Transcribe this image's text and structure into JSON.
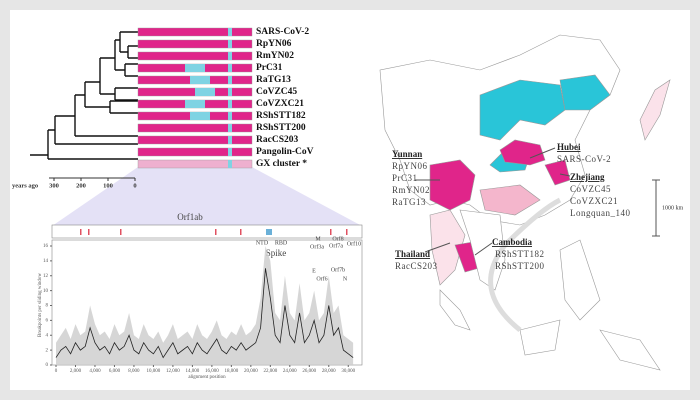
{
  "tree": {
    "taxa": [
      "SARS-CoV-2",
      "RpYN06",
      "RmYN02",
      "PrC31",
      "RaTG13",
      "CoVZC45",
      "CoVZXC21",
      "RShSTT182",
      "RShSTT200",
      "RacCS203",
      "Pangolin-CoV",
      "GX cluster *"
    ],
    "axis_label": "years ago",
    "ticks": [
      300,
      200,
      100,
      0
    ]
  },
  "genome": {
    "regions": [
      "Orf1ab",
      "NTD",
      "RBD",
      "M",
      "Orf8",
      "Orf10",
      "Orf3a",
      "Orf7a",
      "E",
      "Orf7b",
      "Orf6",
      "N",
      "Spike"
    ]
  },
  "chart_data": {
    "type": "line",
    "xlabel": "alignment position",
    "ylabel": "Breakpoints per sliding window",
    "color": "#222",
    "x": [
      0,
      500,
      1000,
      1500,
      2000,
      2500,
      3000,
      3500,
      4000,
      4500,
      5000,
      5500,
      6000,
      6500,
      7000,
      7500,
      8000,
      8500,
      9000,
      9500,
      10000,
      10500,
      11000,
      11500,
      12000,
      12500,
      13000,
      13500,
      14000,
      14500,
      15000,
      15500,
      16000,
      16500,
      17000,
      17500,
      18000,
      18500,
      19000,
      19500,
      20000,
      20500,
      21000,
      21500,
      22000,
      22500,
      23000,
      23500,
      24000,
      24500,
      25000,
      25500,
      26000,
      26500,
      27000,
      27500,
      28000,
      28500,
      29000,
      29500,
      30000,
      30500
    ],
    "values": [
      1,
      2,
      2.5,
      1.5,
      3,
      2,
      2.5,
      5,
      3,
      2,
      2.5,
      1.5,
      3,
      2,
      2.5,
      4,
      2,
      1.5,
      3,
      2,
      1.5,
      2.5,
      1,
      2,
      3,
      1.5,
      2,
      2.5,
      1.5,
      3,
      2,
      1.5,
      2.5,
      3.5,
      2,
      1.5,
      2.5,
      2,
      3,
      2,
      2.5,
      3,
      5,
      13,
      9,
      4,
      3,
      8,
      4,
      3,
      7,
      3,
      4,
      6,
      3,
      4,
      8,
      4,
      5,
      2,
      1.5,
      1
    ],
    "upper": [
      3,
      4,
      5,
      3.5,
      5.5,
      4,
      4.5,
      8,
      5.5,
      4,
      4.5,
      3.5,
      5.5,
      4,
      4.5,
      7,
      4,
      3.5,
      5.5,
      4,
      3.5,
      4.5,
      3,
      4,
      5.5,
      3.5,
      4,
      4.5,
      3.5,
      5.5,
      4,
      3.5,
      4.5,
      6,
      4,
      3.5,
      4.5,
      4,
      5.5,
      4,
      4.5,
      5.5,
      9,
      16,
      14,
      7,
      6,
      12,
      7,
      6,
      11,
      6,
      7,
      10,
      6,
      7,
      12,
      7,
      8,
      4,
      3.5,
      3
    ],
    "xlim": [
      0,
      31000
    ],
    "ylim": [
      0,
      16
    ],
    "xticks": [
      0,
      {
        "value": 2000,
        "label": "2,000"
      },
      {
        "value": 4000,
        "label": "4,000"
      },
      {
        "value": 6000,
        "label": "6,000"
      },
      {
        "value": 8000,
        "label": "8,000"
      },
      {
        "value": 10000,
        "label": "10,000"
      },
      {
        "value": 12000,
        "label": "12,000"
      },
      {
        "value": 14000,
        "label": "14,000"
      },
      {
        "value": 16000,
        "label": "16,000"
      },
      {
        "value": 18000,
        "label": "18,000"
      },
      {
        "value": 20000,
        "label": "20,000"
      },
      {
        "value": 22000,
        "label": "22,000"
      },
      {
        "value": 24000,
        "label": "24,000"
      },
      {
        "value": 26000,
        "label": "26,000"
      },
      {
        "value": 28000,
        "label": "28,000"
      },
      {
        "value": 30000,
        "label": "30,000"
      }
    ],
    "yticks": [
      0,
      2,
      4,
      6,
      8,
      10,
      12,
      14,
      16
    ]
  },
  "map": {
    "regions": [
      {
        "name": "Yunnan",
        "strains": [
          "RpYN06",
          "PrC31",
          "RmYN02",
          "RaTG13"
        ]
      },
      {
        "name": "Hubei",
        "strains": [
          "SARS-CoV-2"
        ]
      },
      {
        "name": "Zhejiang",
        "strains": [
          "CoVZC45",
          "CoVZXC21",
          "Longquan_140"
        ]
      },
      {
        "name": "Thailand",
        "strains": [
          "RacCS203"
        ]
      },
      {
        "name": "Cambodia",
        "strains": [
          "RShSTT182",
          "RShSTT200"
        ]
      }
    ],
    "scale": "1000 km"
  }
}
